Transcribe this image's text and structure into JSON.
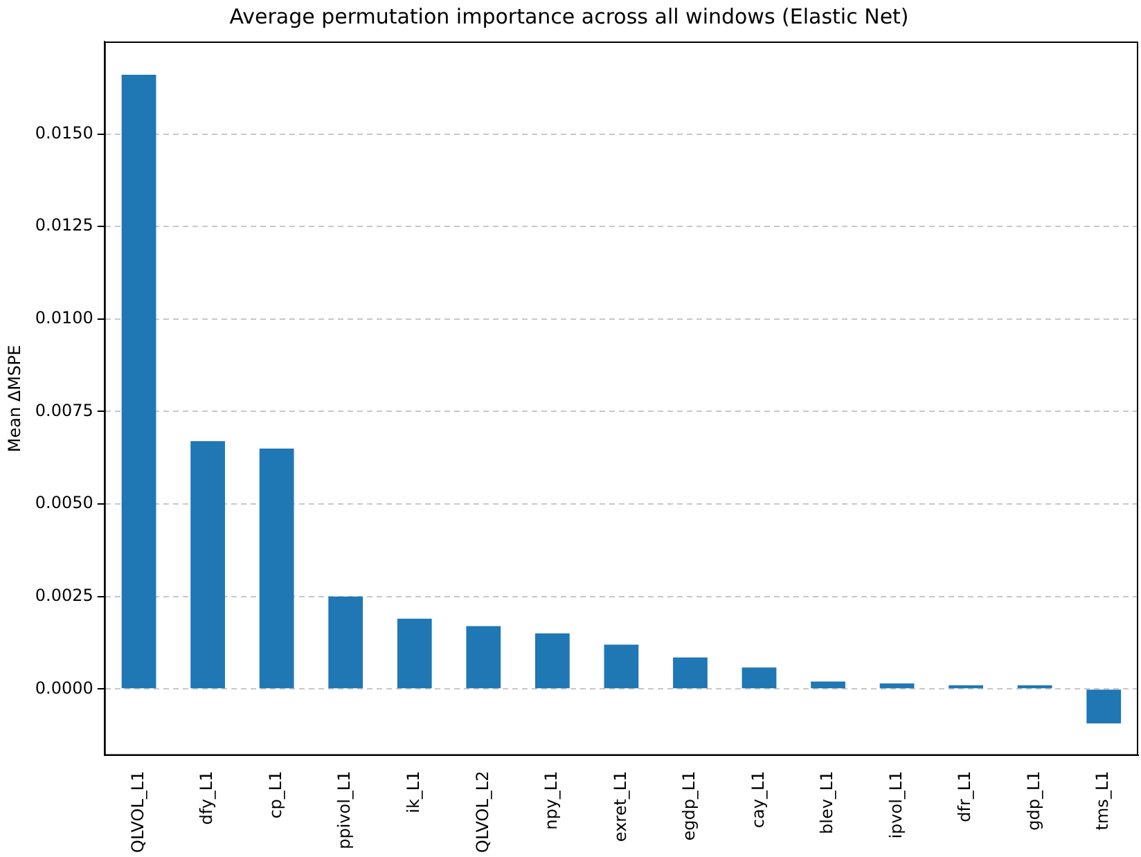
{
  "chart_data": {
    "type": "bar",
    "title": "Average permutation importance across all windows (Elastic Net)",
    "ylabel": "Mean ΔMSPE",
    "categories": [
      "QLVOL_L1",
      "dfy_L1",
      "cp_L1",
      "ppivol_L1",
      "ik_L1",
      "QLVOL_L2",
      "npy_L1",
      "exret_L1",
      "egdp_L1",
      "cay_L1",
      "blev_L1",
      "ipvol_L1",
      "dfr_L1",
      "gdp_L1",
      "tms_L1"
    ],
    "values": [
      0.0166,
      0.0067,
      0.0065,
      0.0025,
      0.0019,
      0.0017,
      0.0015,
      0.0012,
      0.00085,
      0.00058,
      0.0002,
      0.00015,
      0.0001,
      0.0001,
      -0.00093
    ],
    "color": "#1f77b4",
    "ylim": [
      -0.0018,
      0.0175
    ],
    "yticks": [
      {
        "value": 0,
        "label": "0.0000"
      },
      {
        "value": 0.0025,
        "label": "0.0025"
      },
      {
        "value": 0.005,
        "label": "0.0050"
      },
      {
        "value": 0.0075,
        "label": "0.0075"
      },
      {
        "value": 0.01,
        "label": "0.0100"
      },
      {
        "value": 0.0125,
        "label": "0.0125"
      },
      {
        "value": 0.015,
        "label": "0.0150"
      }
    ],
    "grid": "y",
    "legend": false
  }
}
